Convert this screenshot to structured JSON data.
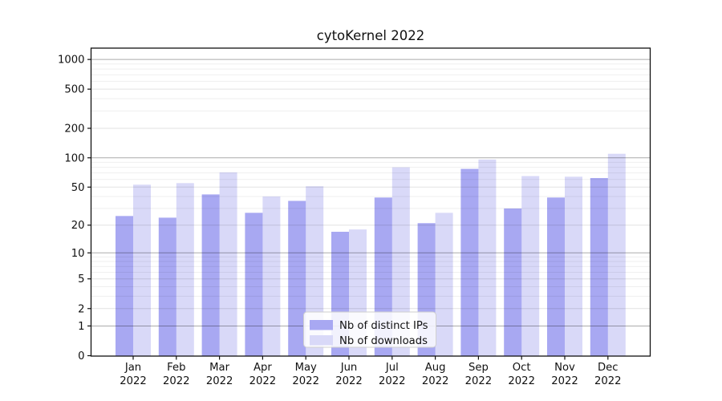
{
  "chart_data": {
    "type": "bar",
    "title": "cytoKernel 2022",
    "year": "2022",
    "categories": [
      "Jan",
      "Feb",
      "Mar",
      "Apr",
      "May",
      "Jun",
      "Jul",
      "Aug",
      "Sep",
      "Oct",
      "Nov",
      "Dec"
    ],
    "series": [
      {
        "name": "Nb of distinct IPs",
        "color": "#a8a8f2",
        "values": [
          25,
          24,
          42,
          27,
          36,
          17,
          39,
          21,
          77,
          30,
          39,
          62
        ]
      },
      {
        "name": "Nb of downloads",
        "color": "#d9d9f8",
        "values": [
          53,
          55,
          71,
          40,
          51,
          18,
          80,
          27,
          96,
          65,
          64,
          110
        ]
      }
    ],
    "yscale": "log1p",
    "ylim": [
      0,
      1280
    ],
    "yticks": [
      0,
      1,
      2,
      5,
      10,
      20,
      50,
      100,
      200,
      500,
      1000
    ],
    "minor_ticks": [
      3,
      4,
      6,
      7,
      8,
      9,
      30,
      40,
      60,
      70,
      80,
      90,
      300,
      400,
      600,
      700,
      800,
      900
    ],
    "grid": "both",
    "legend_position": "lower center",
    "colors": {
      "decade_grid": "#ababab",
      "major_grid": "#e2e2e2",
      "minor_grid": "#efefef",
      "spine": "#111111",
      "legend_border": "#cfcfcf",
      "legend_bg": "#ffffff",
      "text": "#111111"
    }
  }
}
